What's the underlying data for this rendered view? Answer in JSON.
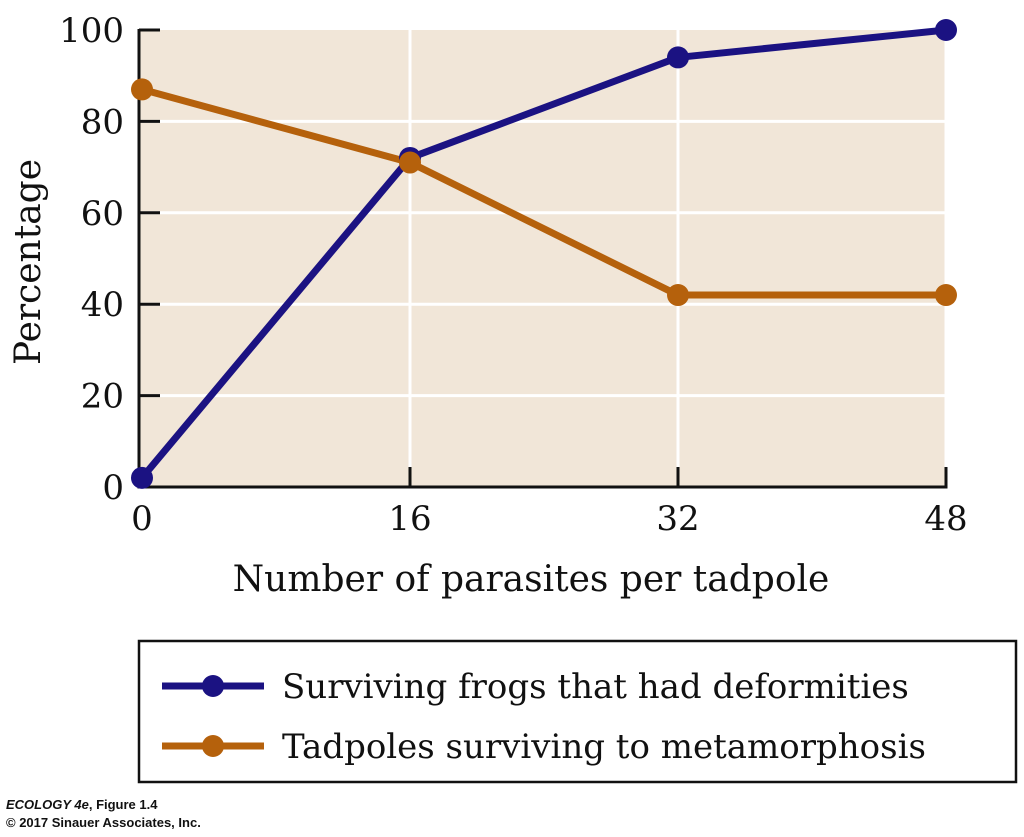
{
  "chart_data": {
    "type": "line",
    "xlabel": "Number of parasites per tadpole",
    "ylabel": "Percentage",
    "x": [
      0,
      16,
      32,
      48
    ],
    "xticks": [
      "0",
      "16",
      "32",
      "48"
    ],
    "yticks": [
      "0",
      "20",
      "40",
      "60",
      "80",
      "100"
    ],
    "xlim": [
      0,
      48
    ],
    "ylim": [
      0,
      100
    ],
    "grid": true,
    "legend_placement": "bottom",
    "background_color": "#f1e6d8",
    "series": [
      {
        "name": "Surviving frogs that had deformities",
        "values": [
          2,
          72,
          94,
          100
        ],
        "color": "#1b1282"
      },
      {
        "name": "Tadpoles surviving to metamorphosis",
        "values": [
          87,
          71,
          42,
          42
        ],
        "color": "#b5610c"
      }
    ]
  },
  "credit": {
    "line1_italic": "ECOLOGY 4e",
    "line1_rest": ", Figure 1.4",
    "line2": "© 2017 Sinauer Associates, Inc."
  }
}
